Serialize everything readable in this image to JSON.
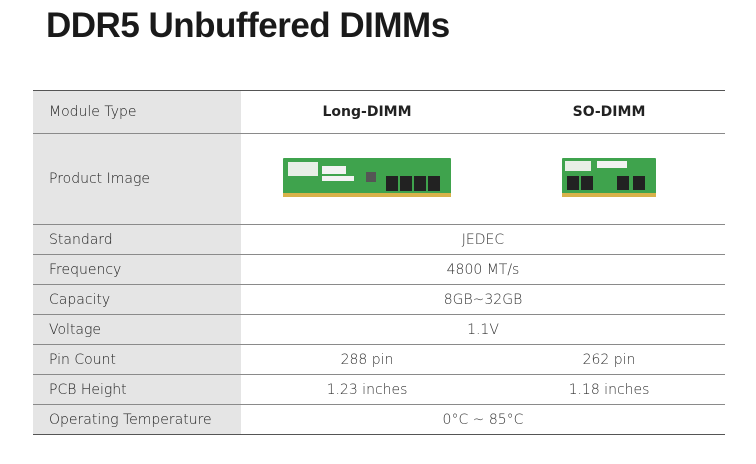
{
  "header": {
    "title": "DDR5 Unbuffered DIMMs"
  },
  "table": {
    "columns": [
      "Module Type",
      "Long-DIMM",
      "SO-DIMM"
    ],
    "rows": [
      [
        "Product Image"
      ],
      [
        "Standard",
        "JEDEC"
      ],
      [
        "Frequency",
        "4800 MT/s"
      ],
      [
        "Capacity",
        "8GB~32GB"
      ],
      [
        "Voltage",
        "1.1V"
      ],
      [
        "Pin Count",
        "288 pin",
        "262 pin"
      ],
      [
        "PCB Height",
        "1.23 inches",
        "1.18 inches"
      ],
      [
        "Operating Temperature",
        "0°C ~ 85°C"
      ]
    ]
  }
}
